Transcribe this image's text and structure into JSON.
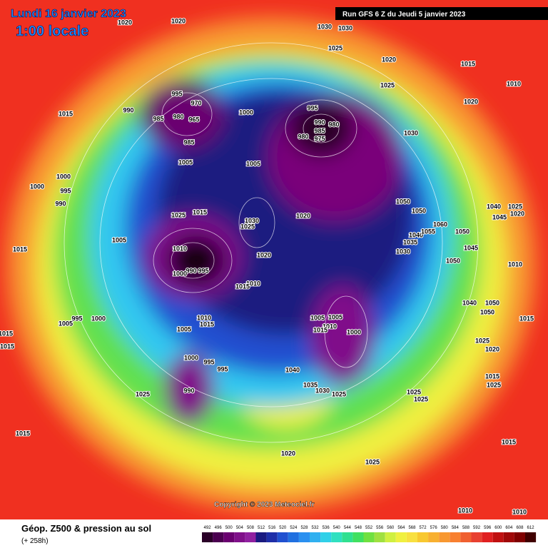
{
  "header": {
    "date": "Lundi 16 janvier 2023",
    "time": "1:00 locale",
    "run": "Run GFS 6 Z du Jeudi 5 janvier 2023"
  },
  "copyright": "Copyright © 2023 Meteociel.fr",
  "footer": {
    "title": "Géop. Z500 & pression au sol",
    "subtitle": "(+ 258h)"
  },
  "scale": {
    "labels": [
      492,
      496,
      500,
      504,
      508,
      512,
      516,
      520,
      524,
      528,
      532,
      536,
      540,
      544,
      548,
      552,
      556,
      560,
      564,
      568,
      572,
      576,
      580,
      584,
      588,
      592,
      596,
      600,
      604,
      608,
      612
    ],
    "colors": [
      "#2a0028",
      "#4b0050",
      "#6a0070",
      "#80108a",
      "#9020a0",
      "#1a1a80",
      "#1e2ea8",
      "#2050d0",
      "#2070e0",
      "#2a90f0",
      "#30b0f0",
      "#30d0e8",
      "#30e0c0",
      "#30e090",
      "#40e060",
      "#70e040",
      "#a0e040",
      "#d0f040",
      "#f0f040",
      "#f8e040",
      "#f8c830",
      "#f8b030",
      "#f89830",
      "#f88030",
      "#f06030",
      "#e84030",
      "#e02020",
      "#c01010",
      "#a00808",
      "#800000",
      "#400000"
    ]
  },
  "isobar_labels": [
    1020,
    1020,
    1030,
    1030,
    1025,
    1020,
    1015,
    1010,
    1025,
    1020,
    1015,
    990,
    995,
    970,
    985,
    980,
    965,
    985,
    1000,
    995,
    990,
    985,
    980,
    980,
    975,
    1030,
    1005,
    1005,
    1000,
    1000,
    995,
    990,
    1025,
    1015,
    1030,
    1025,
    1020,
    1050,
    1050,
    1060,
    1040,
    1025,
    1045,
    1020,
    1050,
    1040,
    1055,
    1035,
    1030,
    1045,
    1050,
    1010,
    1015,
    1005,
    1010,
    1020,
    990,
    995,
    1000,
    1010,
    1015,
    995,
    1000,
    1005,
    1010,
    1015,
    1005,
    1005,
    1005,
    1010,
    1015,
    1000,
    1040,
    1050,
    1050,
    1015,
    1015,
    1015,
    1025,
    1020,
    1000,
    995,
    995,
    1040,
    1035,
    1030,
    1025,
    1025,
    1025,
    1015,
    1025,
    990,
    1025,
    1015,
    1015,
    1020,
    1025,
    1010,
    1010
  ]
}
